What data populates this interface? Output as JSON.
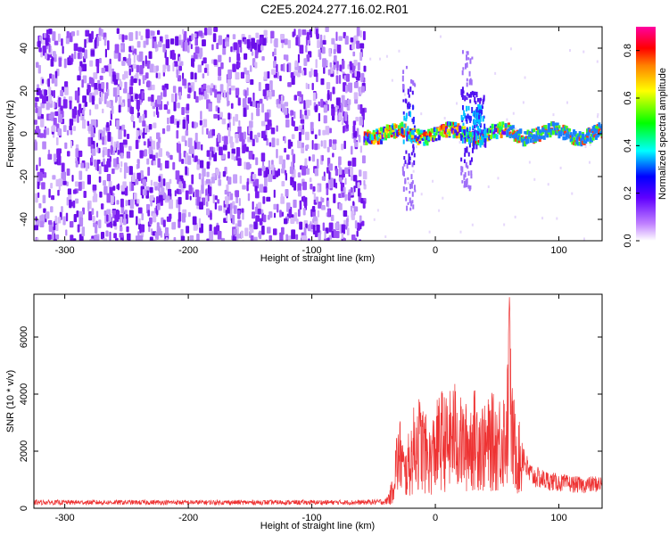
{
  "title": "C2E5.2024.277.16.02.R01",
  "chart_data": [
    {
      "type": "heatmap",
      "xlabel": "Height of straight line (km)",
      "ylabel": "Frequency (Hz)",
      "xlim": [
        -325,
        135
      ],
      "ylim": [
        -50,
        50
      ],
      "xticks": [
        -300,
        -200,
        -100,
        0,
        100
      ],
      "yticks": [
        -40,
        -20,
        0,
        20,
        40
      ],
      "colorbar": {
        "label": "Normalized spectral amplitude",
        "range": [
          0,
          0.9
        ],
        "ticks": [
          0.0,
          0.2,
          0.4,
          0.6,
          0.8
        ],
        "colors": [
          "#ffffff",
          "#8000ff",
          "#0000ff",
          "#00ffff",
          "#00ff00",
          "#ffff00",
          "#ff8000",
          "#ff0000",
          "#ff00ff"
        ]
      },
      "regions": [
        {
          "x": [
            -325,
            -58
          ],
          "description_value": "noise",
          "amplitude": [
            0.05,
            0.3
          ]
        },
        {
          "x": [
            -58,
            135
          ],
          "center_freq_hz": 1,
          "amplitude": [
            0.3,
            0.9
          ]
        }
      ],
      "bursts": [
        {
          "x": -22,
          "freq_range": [
            -35,
            32
          ]
        },
        {
          "x": 25,
          "freq_range": [
            -28,
            40
          ]
        },
        {
          "x": 35,
          "freq_range": [
            -5,
            20
          ]
        }
      ],
      "grid": false
    },
    {
      "type": "line",
      "xlabel": "Height of straight line (km)",
      "ylabel": "SNR (10 * v/v)",
      "xlim": [
        -325,
        135
      ],
      "ylim": [
        0,
        7500
      ],
      "xticks": [
        -300,
        -200,
        -100,
        0,
        100
      ],
      "yticks": [
        0,
        2000,
        4000,
        6000
      ],
      "series": [
        {
          "color": "#ee3333",
          "points": [
            [
              -325,
              250
            ],
            [
              -300,
              250
            ],
            [
              -250,
              250
            ],
            [
              -200,
              250
            ],
            [
              -150,
              250
            ],
            [
              -100,
              250
            ],
            [
              -60,
              250
            ],
            [
              -40,
              300
            ],
            [
              -35,
              900
            ],
            [
              -32,
              2400
            ],
            [
              -28,
              3000
            ],
            [
              -25,
              1800
            ],
            [
              -20,
              2700
            ],
            [
              -15,
              3800
            ],
            [
              -10,
              3400
            ],
            [
              -5,
              2600
            ],
            [
              0,
              3300
            ],
            [
              5,
              3900
            ],
            [
              10,
              3500
            ],
            [
              15,
              4200
            ],
            [
              20,
              3600
            ],
            [
              25,
              3400
            ],
            [
              30,
              3800
            ],
            [
              35,
              3900
            ],
            [
              40,
              3300
            ],
            [
              45,
              3700
            ],
            [
              50,
              3600
            ],
            [
              55,
              4000
            ],
            [
              58,
              4200
            ],
            [
              60,
              7400
            ],
            [
              62,
              4000
            ],
            [
              65,
              3300
            ],
            [
              70,
              2400
            ],
            [
              75,
              1500
            ],
            [
              80,
              1300
            ],
            [
              90,
              1150
            ],
            [
              100,
              1050
            ],
            [
              110,
              1000
            ],
            [
              120,
              950
            ],
            [
              130,
              1000
            ],
            [
              135,
              1000
            ]
          ]
        }
      ],
      "grid": false
    }
  ]
}
